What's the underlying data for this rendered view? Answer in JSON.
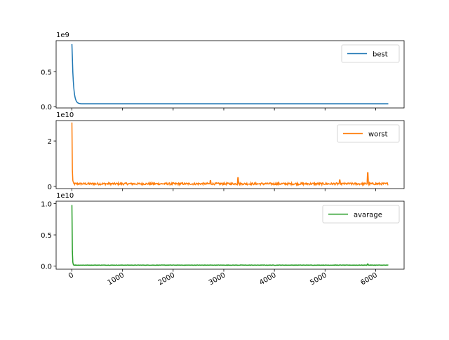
{
  "chart_data": [
    {
      "type": "line",
      "series": [
        {
          "name": "best",
          "color": "#1f77b4"
        }
      ],
      "ylim": [
        -20000000,
        950000000
      ],
      "yticks": [
        0,
        0.5
      ],
      "ytick_labels": [
        "0.0",
        "0.5"
      ],
      "offset_label": "1e9",
      "xlim": [
        -312,
        6562
      ],
      "curve": {
        "start": 900000000,
        "early": 700000000,
        "plateau": 40000000,
        "end_x": 6250
      },
      "legend": "top-right"
    },
    {
      "type": "line",
      "series": [
        {
          "name": "worst",
          "color": "#ff7f0e"
        }
      ],
      "ylim": [
        -1000000000,
        29000000000
      ],
      "yticks": [
        0,
        2
      ],
      "ytick_labels": [
        "0",
        "2"
      ],
      "offset_label": "1e10",
      "xlim": [
        -312,
        6562
      ],
      "curve": {
        "start": 28000000000,
        "plateau": 1100000000,
        "noise": 900000000,
        "spikes": [
          [
            2740,
            2500000000
          ],
          [
            3280,
            3800000000
          ],
          [
            5290,
            2800000000
          ],
          [
            5840,
            6000000000
          ]
        ],
        "end_x": 6250
      },
      "legend": "top-right"
    },
    {
      "type": "line",
      "series": [
        {
          "name": "avarage",
          "color": "#2ca02c"
        }
      ],
      "ylim": [
        -500000000,
        10400000000
      ],
      "yticks": [
        0,
        0.5,
        1.0
      ],
      "ytick_labels": [
        "0.0",
        "0.5",
        "1.0"
      ],
      "offset_label": "1e10",
      "xlim": [
        -312,
        6562
      ],
      "xticks": [
        0,
        1000,
        2000,
        3000,
        4000,
        5000,
        6000
      ],
      "xtick_labels": [
        "0",
        "1000",
        "2000",
        "3000",
        "4000",
        "5000",
        "6000"
      ],
      "curve": {
        "start": 9800000000,
        "plateau": 150000000,
        "noise": 60000000,
        "spikes": [
          [
            5840,
            350000000
          ]
        ],
        "end_x": 6250
      },
      "legend": "top-right"
    }
  ]
}
